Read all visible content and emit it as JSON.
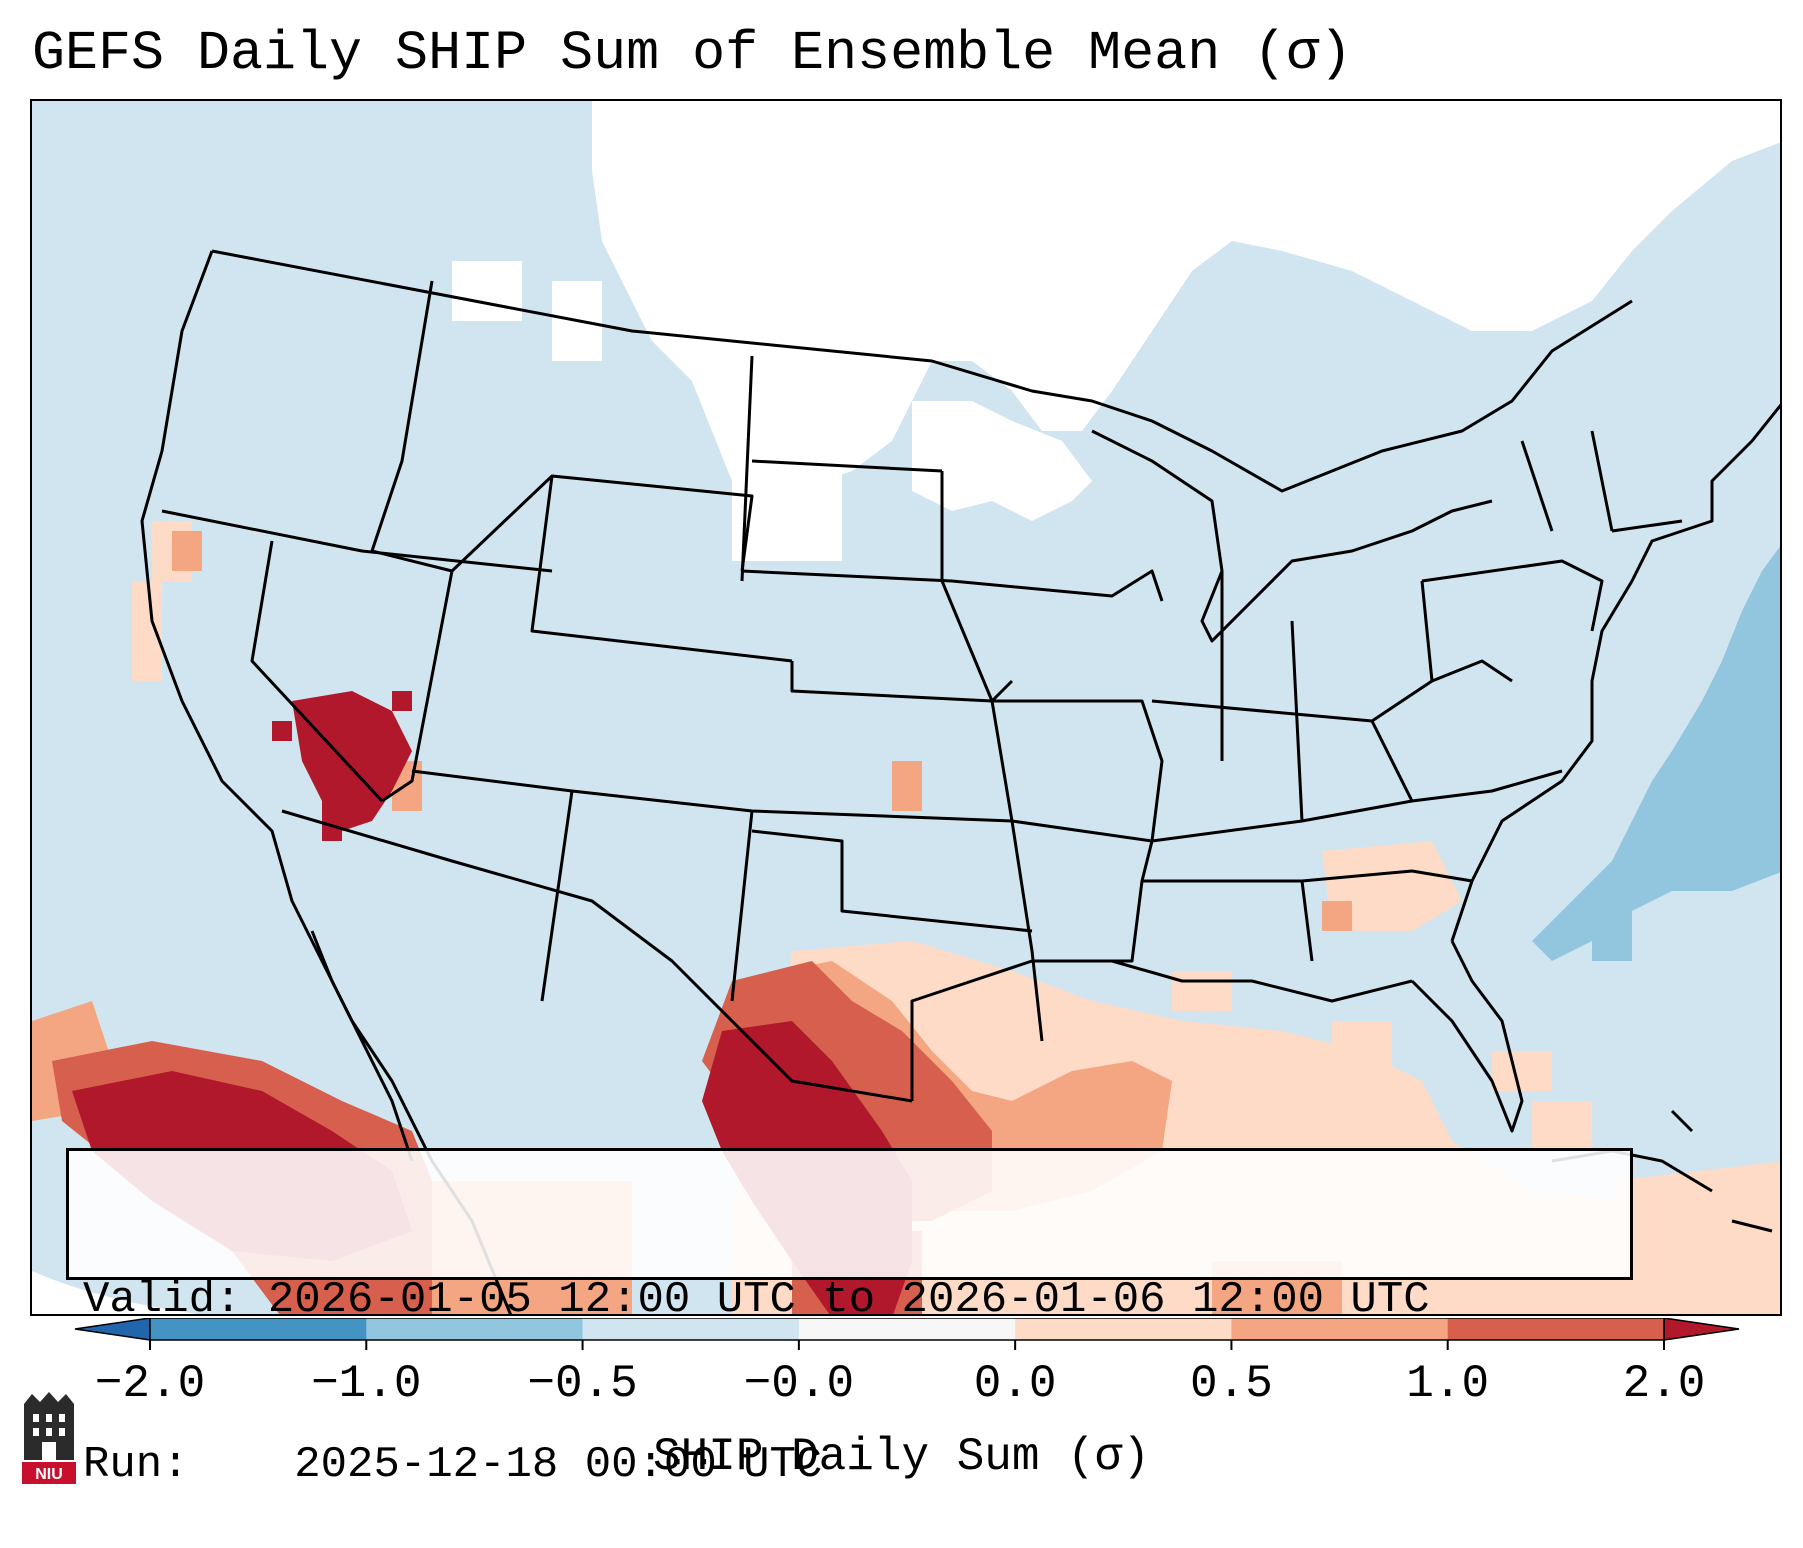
{
  "title": "GEFS Daily SHIP Sum of Ensemble Mean (σ)",
  "info": {
    "valid_label": "Valid:",
    "valid_value": "2026-01-05 12:00 UTC to 2026-01-06 12:00 UTC",
    "run_label": "Run:",
    "run_value": "2025-12-18 00:00 UTC"
  },
  "colorbar": {
    "label": "SHIP Daily Sum (σ)",
    "ticks": [
      "−2.0",
      "−1.0",
      "−0.5",
      "−0.0",
      "0.0",
      "0.5",
      "1.0",
      "2.0"
    ],
    "colors": [
      "#4393c3",
      "#92c5de",
      "#d1e5f0",
      "#f7f7f7",
      "#fddbc7",
      "#f4a582",
      "#d6604d"
    ],
    "under_color": "#2166ac",
    "over_color": "#b2182b"
  },
  "logo": {
    "text": "NIU"
  },
  "map": {
    "ocean_color": "#d1e5f0",
    "regions": [
      {
        "name": "canada-neutral",
        "level": "neutral"
      },
      {
        "name": "upper-midwest-neutral",
        "level": "neutral"
      },
      {
        "name": "atlantic-negative",
        "level": "-1.0 to -0.5"
      },
      {
        "name": "nevada-high",
        "level": ">2.0"
      },
      {
        "name": "texas-high",
        "level": "1.0 to 2.0"
      },
      {
        "name": "mexico-pacific-high",
        "level": "1.0 to 2.0"
      },
      {
        "name": "gulf-positive",
        "level": "0.0 to 1.0"
      }
    ]
  }
}
